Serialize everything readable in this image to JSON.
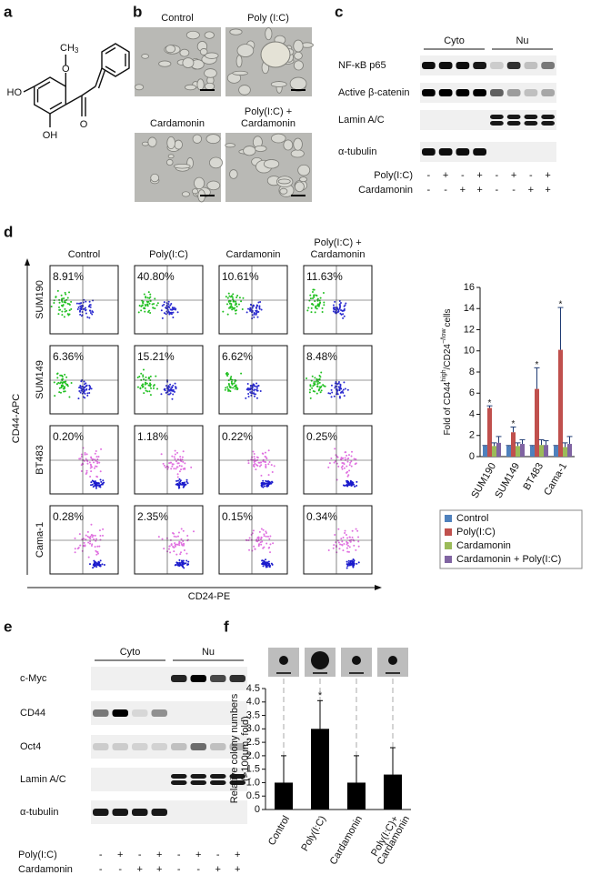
{
  "panels": {
    "a": {
      "label": "a",
      "atoms": {
        "ho": "HO",
        "oh": "OH",
        "o_ketone": "O",
        "o_methoxy": "O",
        "methyl": "CH",
        "methyl_sub": "3"
      }
    },
    "b": {
      "label": "b",
      "images": [
        [
          "Control"
        ],
        [
          "Poly (I:C)"
        ],
        [
          "Cardamonin"
        ],
        [
          "Poly(I:C) +",
          "Cardamonin"
        ]
      ]
    },
    "c": {
      "label": "c",
      "groups": [
        "Cyto",
        "Nu"
      ],
      "proteins": [
        "NF-κB p65",
        "Active β-catenin",
        "Lamin A/C",
        "α-tubulin"
      ],
      "treatments": [
        {
          "name": "Poly(I:C)",
          "signs": [
            "-",
            "+",
            "-",
            "+",
            "-",
            "+",
            "-",
            "+"
          ]
        },
        {
          "name": "Cardamonin",
          "signs": [
            "-",
            "-",
            "+",
            "+",
            "-",
            "-",
            "+",
            "+"
          ]
        }
      ]
    },
    "d": {
      "label": "d",
      "columns": [
        [
          "Control"
        ],
        [
          "Poly(I:C)"
        ],
        [
          "Cardamonin"
        ],
        [
          "Poly(I:C) +",
          "Cardamonin"
        ]
      ],
      "rows": [
        "SUM190",
        "SUM149",
        "BT483",
        "Cama-1"
      ],
      "percentages": [
        [
          "8.91%",
          "40.80%",
          "10.61%",
          "11.63%"
        ],
        [
          "6.36%",
          "15.21%",
          "6.62%",
          "8.48%"
        ],
        [
          "0.20%",
          "1.18%",
          "0.22%",
          "0.25%"
        ],
        [
          "0.28%",
          "2.35%",
          "0.15%",
          "0.34%"
        ]
      ],
      "y_axis": "CD44-APC",
      "x_axis": "CD24-PE"
    },
    "e": {
      "label": "e",
      "groups": [
        "Cyto",
        "Nu"
      ],
      "proteins": [
        "c-Myc",
        "CD44",
        "Oct4",
        "Lamin A/C",
        "α-tubulin"
      ],
      "treatments": [
        {
          "name": "Poly(I:C)",
          "signs": [
            "-",
            "+",
            "-",
            "+",
            "-",
            "+",
            "-",
            "+"
          ]
        },
        {
          "name": "Cardamonin",
          "signs": [
            "-",
            "-",
            "+",
            "+",
            "-",
            "-",
            "+",
            "+"
          ]
        }
      ]
    },
    "f": {
      "label": "f"
    }
  },
  "chart_data": [
    {
      "type": "bar",
      "ylabel": [
        "Fold of CD44",
        "high",
        "/CD24",
        "−/low",
        "cells"
      ],
      "categories": [
        "SUM190",
        "SUM149",
        "BT483",
        "Cama-1"
      ],
      "series": [
        {
          "name": "Control",
          "color": "#4f81bd",
          "values": [
            1,
            1,
            1,
            1
          ],
          "errors": [
            0.05,
            0.05,
            0.05,
            0.05
          ]
        },
        {
          "name": "Poly(I:C)",
          "color": "#c0504d",
          "values": [
            4.6,
            2.3,
            6.4,
            10.1
          ],
          "errors": [
            0.2,
            0.5,
            2,
            4
          ],
          "significance": [
            "*",
            "*",
            "*",
            "*"
          ]
        },
        {
          "name": "Cardamonin",
          "color": "#9bbb59",
          "values": [
            1,
            1,
            1.1,
            0.9
          ],
          "errors": [
            0.3,
            0.3,
            0.5,
            0.4
          ]
        },
        {
          "name": "Cardamonin + Poly(I:C)",
          "color": "#8064a2",
          "values": [
            1.3,
            1.2,
            1.1,
            1.2
          ],
          "errors": [
            0.6,
            0.4,
            0.4,
            0.7
          ]
        }
      ],
      "ylim": [
        0,
        16
      ],
      "yticks": [
        0,
        2,
        4,
        6,
        8,
        10,
        12,
        14,
        16
      ]
    },
    {
      "type": "bar",
      "ylabel": [
        "Relative colony numbers",
        "(>100μm, fold)"
      ],
      "categories": [
        [
          "Control"
        ],
        [
          "Poly(I:C)"
        ],
        [
          "Cardamonin"
        ],
        [
          "Poly(I:C)+",
          "Cardamonin"
        ]
      ],
      "color": "#000000",
      "values": [
        1,
        3,
        1,
        1.3
      ],
      "errors": [
        1,
        1.05,
        1,
        1
      ],
      "significance": [
        null,
        "*",
        null,
        null
      ],
      "ylim": [
        0,
        4.5
      ],
      "yticks": [
        0,
        0.5,
        {
          "value": 1,
          "label": "1.0"
        },
        1.5,
        {
          "value": 2,
          "label": "2.0"
        },
        2.5,
        {
          "value": 3,
          "label": "3.0"
        },
        3.5,
        {
          "value": 4,
          "label": "4.0"
        },
        4.5
      ]
    }
  ]
}
